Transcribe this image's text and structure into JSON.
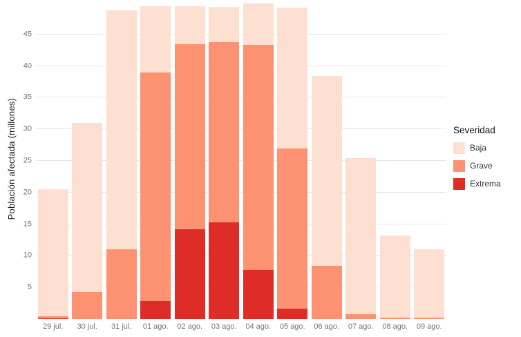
{
  "chart_data": {
    "type": "bar",
    "stacked": true,
    "title": "",
    "xlabel": "",
    "ylabel": "Población afectada (millones)",
    "legend_title": "Severidad",
    "legend_position": "right",
    "grid": true,
    "ylim": [
      0,
      50
    ],
    "yticks": [
      5,
      10,
      15,
      20,
      25,
      30,
      35,
      40,
      45
    ],
    "categories": [
      "29 jul.",
      "30 jul.",
      "31 jul.",
      "01 ago.",
      "02 ago.",
      "03 ago.",
      "04 ago.",
      "05 ago.",
      "06 ago.",
      "07 ago.",
      "08 ago.",
      "09 ago."
    ],
    "series": [
      {
        "name": "Extrema",
        "color": "#de2d26",
        "values": [
          0.1,
          0,
          0,
          2.8,
          14.2,
          15.3,
          7.7,
          1.6,
          0,
          0,
          0,
          0
        ]
      },
      {
        "name": "Grave",
        "color": "#fc9272",
        "values": [
          0.3,
          4.3,
          11.0,
          36.2,
          29.3,
          28.5,
          35.6,
          25.4,
          8.4,
          0.8,
          0.2,
          0.2
        ]
      },
      {
        "name": "Baja",
        "color": "#fee0d2",
        "values": [
          20.1,
          26.7,
          37.8,
          10.5,
          6.0,
          5.5,
          6.6,
          22.2,
          30.0,
          24.6,
          13.0,
          10.8
        ]
      }
    ],
    "stack_order_bottom_to_top": [
      "Extrema",
      "Grave",
      "Baja"
    ],
    "legend_order": [
      "Baja",
      "Grave",
      "Extrema"
    ]
  },
  "colors": {
    "background": "#ffffff",
    "gridline": "#e6e6e6",
    "tick_label": "#737373",
    "axis_title": "#1a1a1a"
  }
}
